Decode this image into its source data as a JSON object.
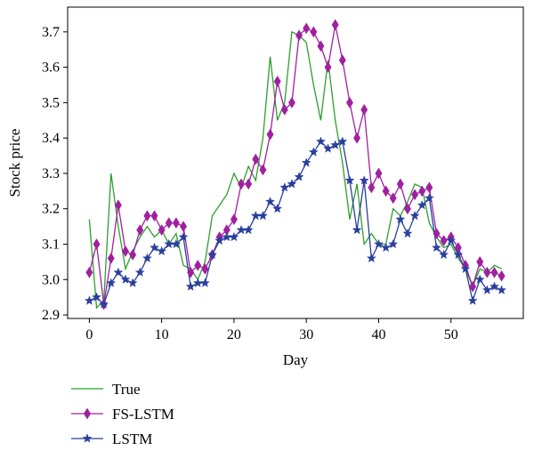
{
  "chart_data": {
    "type": "line",
    "xlabel": "Day",
    "ylabel": "Stock price",
    "xlim": [
      -3,
      60
    ],
    "ylim": [
      2.89,
      3.77
    ],
    "xticks": [
      0,
      10,
      20,
      30,
      40,
      50
    ],
    "yticks": [
      2.9,
      3.0,
      3.1,
      3.2,
      3.3,
      3.4,
      3.5,
      3.6,
      3.7
    ],
    "xtick_labels": [
      "0",
      "10",
      "20",
      "30",
      "40",
      "50"
    ],
    "ytick_labels": [
      "2.9",
      "3.0",
      "3.1",
      "3.2",
      "3.3",
      "3.4",
      "3.5",
      "3.6",
      "3.7"
    ],
    "grid": false,
    "legend_position": "bottom-left, below plot",
    "x": [
      0,
      1,
      2,
      3,
      4,
      5,
      6,
      7,
      8,
      9,
      10,
      11,
      12,
      13,
      14,
      15,
      16,
      17,
      18,
      19,
      20,
      21,
      22,
      23,
      24,
      25,
      26,
      27,
      28,
      29,
      30,
      31,
      32,
      33,
      34,
      35,
      36,
      37,
      38,
      39,
      40,
      41,
      42,
      43,
      44,
      45,
      46,
      47,
      48,
      49,
      50,
      51,
      52,
      53,
      54,
      55,
      56,
      57
    ],
    "series": [
      {
        "name": "True",
        "color": "#2ca02c",
        "marker": "none",
        "values": [
          3.17,
          2.92,
          2.94,
          3.3,
          3.15,
          3.03,
          3.08,
          3.12,
          3.15,
          3.12,
          3.14,
          3.1,
          3.13,
          3.04,
          3.03,
          3.0,
          3.05,
          3.18,
          3.21,
          3.24,
          3.3,
          3.26,
          3.32,
          3.28,
          3.4,
          3.63,
          3.45,
          3.5,
          3.7,
          3.69,
          3.67,
          3.55,
          3.45,
          3.62,
          3.45,
          3.33,
          3.17,
          3.27,
          3.1,
          3.13,
          3.1,
          3.1,
          3.2,
          3.18,
          3.22,
          3.27,
          3.26,
          3.16,
          3.12,
          3.09,
          3.1,
          3.06,
          3.03,
          2.98,
          3.03,
          3.02,
          3.04,
          3.03
        ]
      },
      {
        "name": "FS-LSTM",
        "color": "#a020a0",
        "marker": "diamond",
        "values": [
          3.02,
          3.1,
          2.93,
          3.06,
          3.21,
          3.08,
          3.07,
          3.14,
          3.18,
          3.18,
          3.14,
          3.16,
          3.16,
          3.15,
          3.02,
          3.04,
          3.03,
          3.07,
          3.12,
          3.14,
          3.17,
          3.27,
          3.27,
          3.34,
          3.31,
          3.41,
          3.56,
          3.48,
          3.5,
          3.69,
          3.71,
          3.7,
          3.66,
          3.6,
          3.72,
          3.62,
          3.5,
          3.4,
          3.48,
          3.26,
          3.3,
          3.25,
          3.23,
          3.27,
          3.2,
          3.24,
          3.25,
          3.26,
          3.13,
          3.11,
          3.12,
          3.09,
          3.04,
          2.98,
          3.05,
          3.02,
          3.02,
          3.01
        ]
      },
      {
        "name": "LSTM",
        "color": "#2a3f9d",
        "marker": "star",
        "values": [
          2.94,
          2.95,
          2.93,
          2.99,
          3.02,
          3.0,
          2.99,
          3.02,
          3.06,
          3.09,
          3.08,
          3.1,
          3.1,
          3.12,
          2.98,
          2.99,
          2.99,
          3.07,
          3.11,
          3.12,
          3.12,
          3.14,
          3.14,
          3.18,
          3.18,
          3.22,
          3.2,
          3.26,
          3.27,
          3.29,
          3.33,
          3.36,
          3.39,
          3.37,
          3.38,
          3.39,
          3.28,
          3.14,
          3.28,
          3.06,
          3.1,
          3.09,
          3.1,
          3.17,
          3.13,
          3.18,
          3.21,
          3.23,
          3.09,
          3.07,
          3.11,
          3.07,
          3.03,
          2.94,
          3.0,
          2.97,
          2.98,
          2.97
        ]
      }
    ]
  }
}
